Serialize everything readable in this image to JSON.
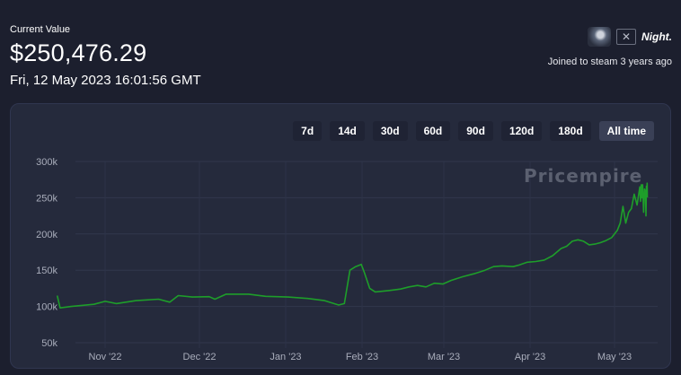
{
  "header": {
    "label": "Current Value",
    "value": "$250,476.29",
    "date": "Fri, 12 May 2023 16:01:56 GMT"
  },
  "user": {
    "name": "Night.",
    "close_symbol": "✕",
    "joined": "Joined to steam  3 years ago",
    "avatar_icon": "user-avatar-icon"
  },
  "range_buttons": [
    "7d",
    "14d",
    "30d",
    "60d",
    "90d",
    "120d",
    "180d",
    "All time"
  ],
  "active_range": "All time",
  "watermark": "Pricempire",
  "chart_data": {
    "type": "line",
    "y_ticks": [
      "300k",
      "250k",
      "200k",
      "150k",
      "100k",
      "50k"
    ],
    "ylim": [
      50000,
      300000
    ],
    "x_ticks": [
      "Nov '22",
      "Dec '22",
      "Jan '23",
      "Feb '23",
      "Mar '23",
      "Apr '23",
      "May '23"
    ],
    "grid": true,
    "line_color": "#1e9e2a",
    "series": [
      {
        "points": [
          [
            "2022-10-15",
            115000
          ],
          [
            "2022-10-16",
            98000
          ],
          [
            "2022-10-20",
            100000
          ],
          [
            "2022-10-28",
            103000
          ],
          [
            "2022-11-01",
            107000
          ],
          [
            "2022-11-05",
            104000
          ],
          [
            "2022-11-12",
            108000
          ],
          [
            "2022-11-20",
            110000
          ],
          [
            "2022-11-24",
            106000
          ],
          [
            "2022-11-27",
            115000
          ],
          [
            "2022-12-02",
            113000
          ],
          [
            "2022-12-08",
            113500
          ],
          [
            "2022-12-10",
            110000
          ],
          [
            "2022-12-14",
            117000
          ],
          [
            "2022-12-22",
            117000
          ],
          [
            "2022-12-28",
            114000
          ],
          [
            "2023-01-05",
            113000
          ],
          [
            "2023-01-12",
            111000
          ],
          [
            "2023-01-18",
            108000
          ],
          [
            "2023-01-23",
            102000
          ],
          [
            "2023-01-25",
            104000
          ],
          [
            "2023-01-27",
            150000
          ],
          [
            "2023-01-29",
            155000
          ],
          [
            "2023-01-31",
            158000
          ],
          [
            "2023-02-01",
            148000
          ],
          [
            "2023-02-03",
            125000
          ],
          [
            "2023-02-05",
            120000
          ],
          [
            "2023-02-10",
            122000
          ],
          [
            "2023-02-14",
            124000
          ],
          [
            "2023-02-17",
            127000
          ],
          [
            "2023-02-20",
            129000
          ],
          [
            "2023-02-23",
            127000
          ],
          [
            "2023-02-26",
            132000
          ],
          [
            "2023-03-01",
            131000
          ],
          [
            "2023-03-04",
            136000
          ],
          [
            "2023-03-08",
            141000
          ],
          [
            "2023-03-12",
            145000
          ],
          [
            "2023-03-16",
            150000
          ],
          [
            "2023-03-19",
            155000
          ],
          [
            "2023-03-22",
            156000
          ],
          [
            "2023-03-26",
            155000
          ],
          [
            "2023-03-28",
            157000
          ],
          [
            "2023-03-31",
            161000
          ],
          [
            "2023-04-03",
            162000
          ],
          [
            "2023-04-06",
            164000
          ],
          [
            "2023-04-09",
            170000
          ],
          [
            "2023-04-12",
            180000
          ],
          [
            "2023-04-14",
            183000
          ],
          [
            "2023-04-16",
            190000
          ],
          [
            "2023-04-18",
            192000
          ],
          [
            "2023-04-20",
            190000
          ],
          [
            "2023-04-22",
            185000
          ],
          [
            "2023-04-24",
            186000
          ],
          [
            "2023-04-26",
            188000
          ],
          [
            "2023-04-28",
            191000
          ],
          [
            "2023-04-30",
            195000
          ],
          [
            "2023-05-02",
            205000
          ],
          [
            "2023-05-03",
            215000
          ],
          [
            "2023-05-04",
            238000
          ],
          [
            "2023-05-05",
            215000
          ],
          [
            "2023-05-06",
            230000
          ],
          [
            "2023-05-07",
            235000
          ],
          [
            "2023-05-08",
            255000
          ],
          [
            "2023-05-09",
            240000
          ],
          [
            "2023-05-10",
            265000
          ],
          [
            "2023-05-10T06",
            245000
          ],
          [
            "2023-05-10T12",
            268000
          ],
          [
            "2023-05-10T18",
            250000
          ],
          [
            "2023-05-11",
            268000
          ],
          [
            "2023-05-11T08",
            230000
          ],
          [
            "2023-05-11T16",
            262000
          ],
          [
            "2023-05-12",
            258000
          ],
          [
            "2023-05-12T04",
            225000
          ],
          [
            "2023-05-12T08",
            266000
          ],
          [
            "2023-05-12T12",
            258000
          ],
          [
            "2023-05-12T14",
            270000
          ],
          [
            "2023-05-12T16",
            250476
          ]
        ]
      }
    ]
  }
}
